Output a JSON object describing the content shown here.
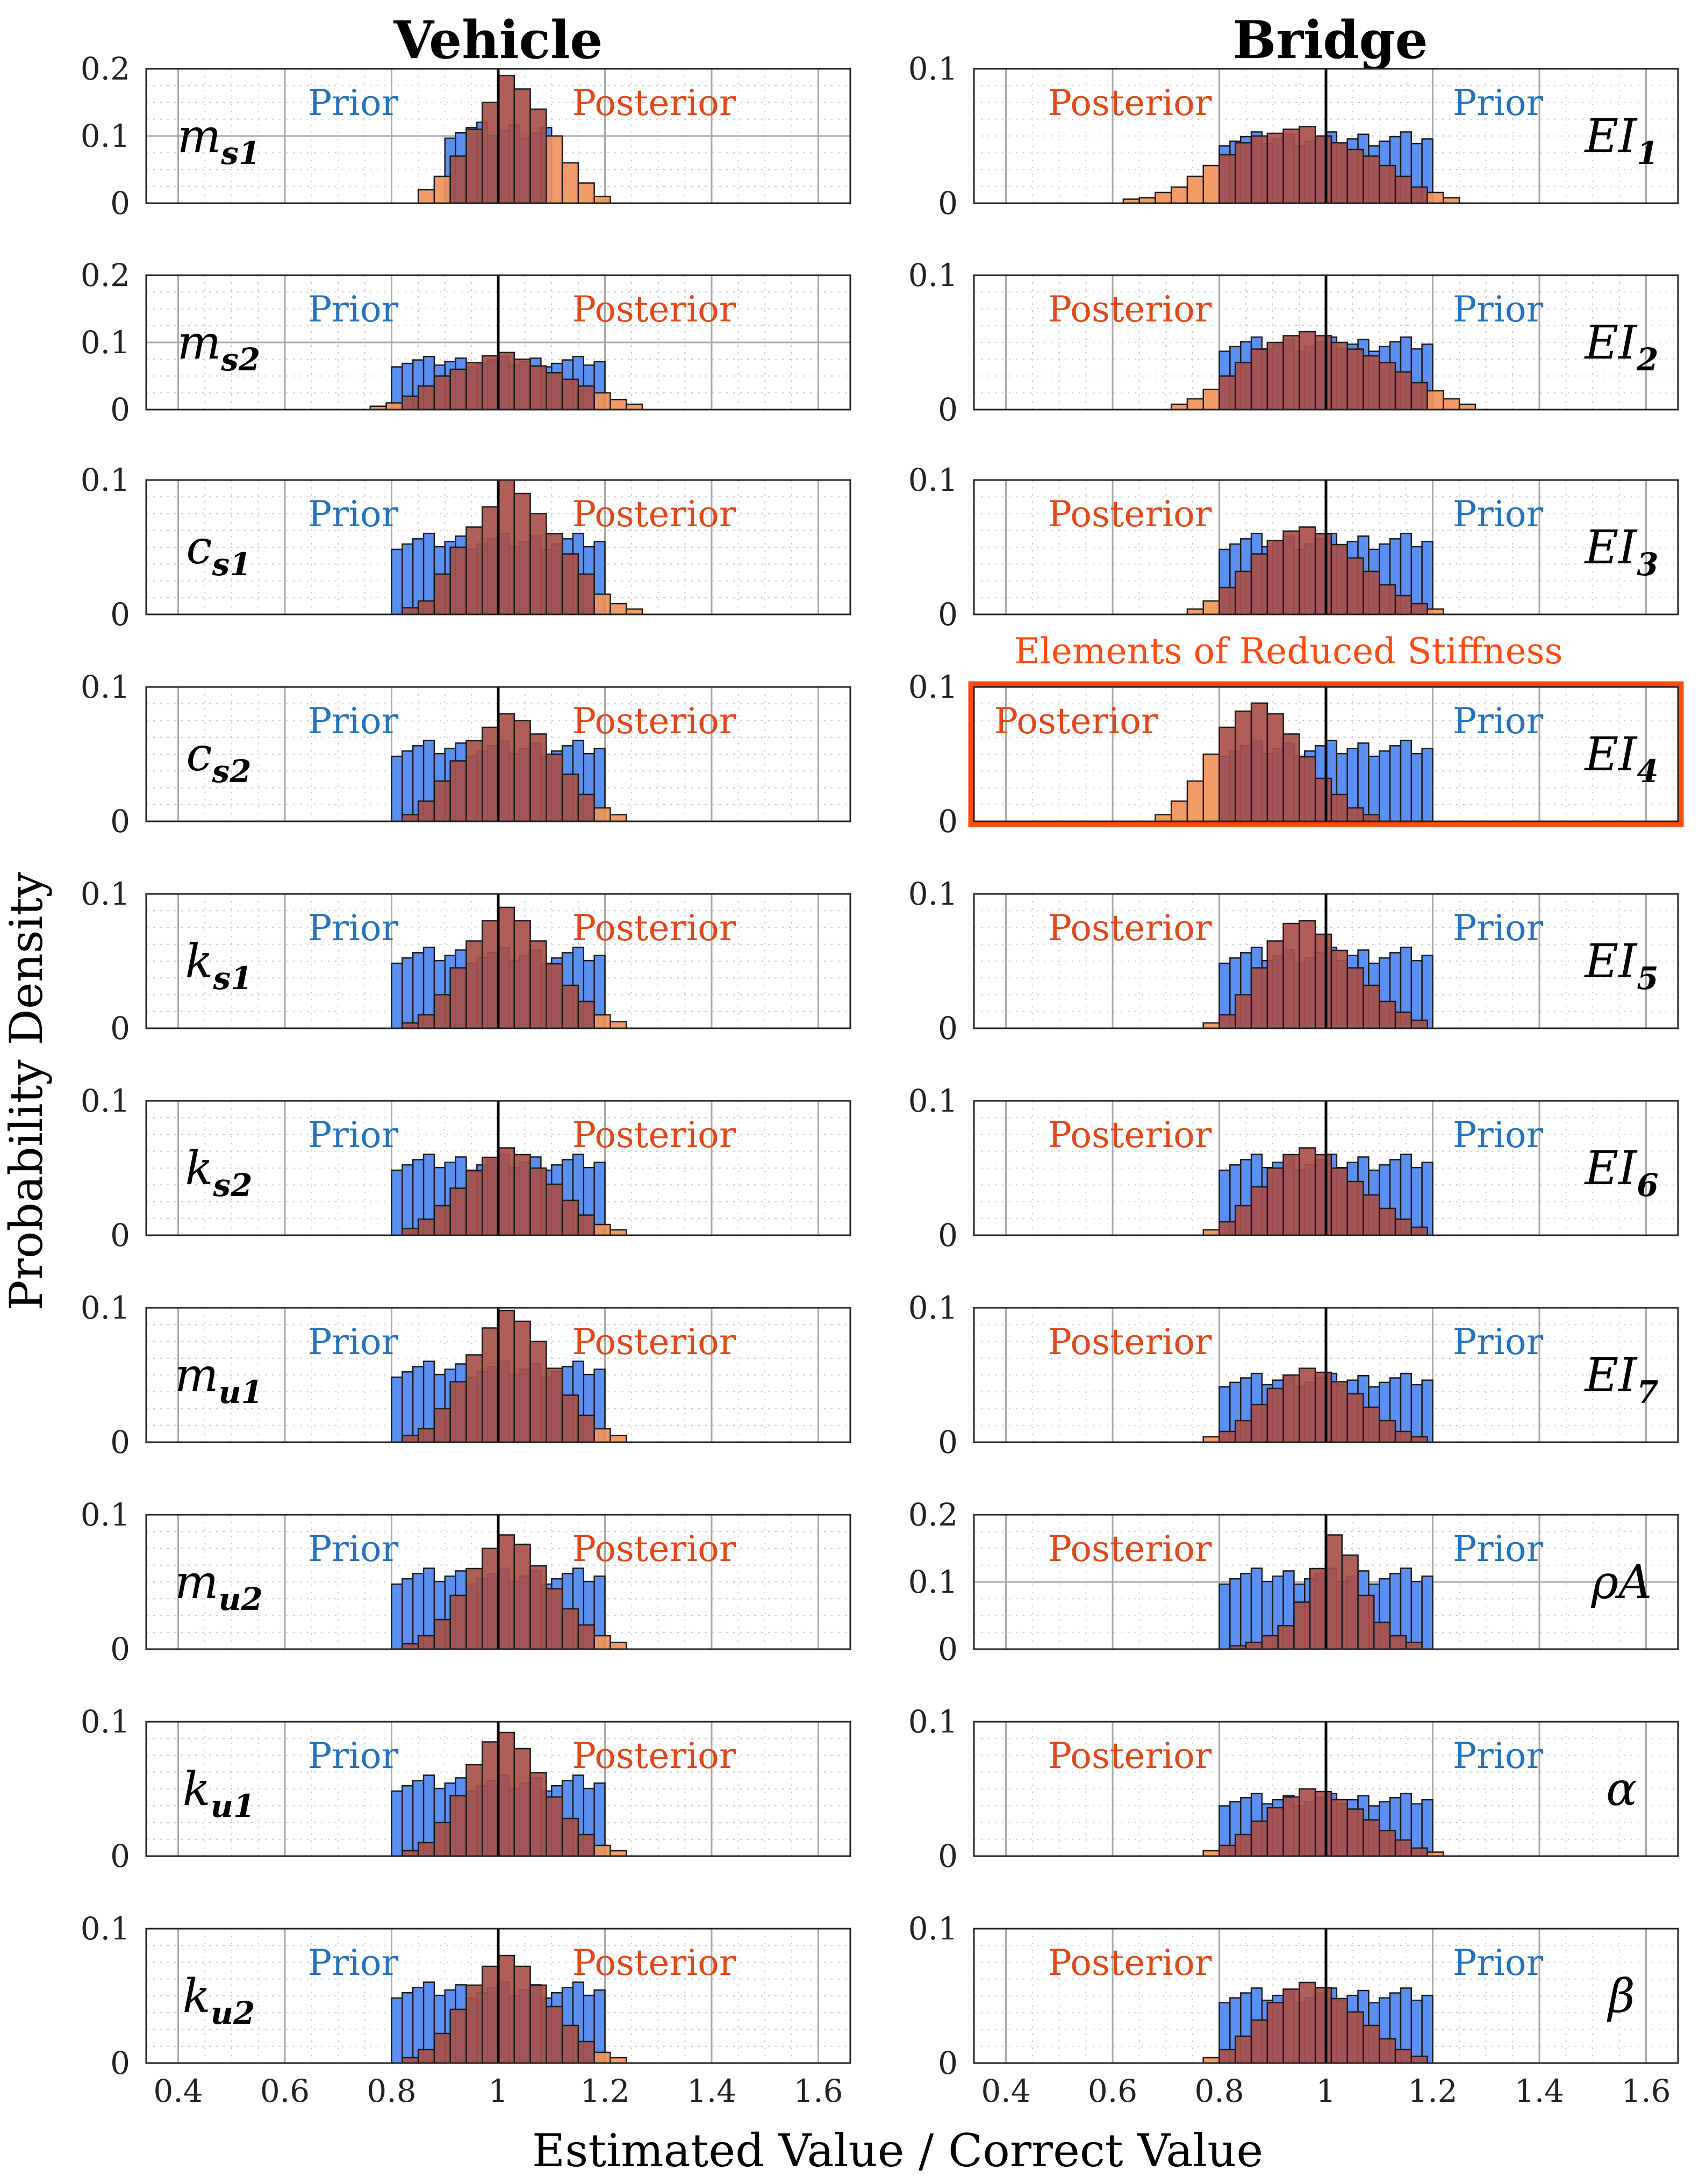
{
  "column_titles": {
    "vehicle": "Vehicle",
    "bridge": "Bridge"
  },
  "xlabel": "Estimated Value / Correct Value",
  "ylabel": "Probability Density",
  "labels": {
    "prior": "Prior",
    "posterior": "Posterior"
  },
  "highlight": {
    "label": "Elements of Reduced Stiffness",
    "panel": "EI4"
  },
  "colors": {
    "prior": "#5b8ff0",
    "posterior": "#f0925a",
    "overlap": "#a8504a",
    "prior_text": "#2472bd",
    "posterior_text": "#e0481a",
    "highlight": "#ff4a12"
  },
  "x_ticks": [
    "0.4",
    "0.6",
    "0.8",
    "1",
    "1.2",
    "1.4",
    "1.6"
  ],
  "xlim": [
    0.34,
    1.66
  ],
  "chart_data": [
    {
      "type": "bar",
      "id": "ms1",
      "column": "Vehicle",
      "param": "m",
      "sub": "s1",
      "ylim": [
        0,
        0.2
      ],
      "yticks": [
        "0",
        "0.1",
        "0.2"
      ],
      "grid": true,
      "prior_range": [
        0.9,
        1.1
      ],
      "posterior_peak": 0.19,
      "posterior_values": [
        0.02,
        0.04,
        0.07,
        0.11,
        0.15,
        0.19,
        0.17,
        0.14,
        0.1,
        0.06,
        0.03,
        0.01
      ]
    },
    {
      "type": "bar",
      "id": "EI1",
      "column": "Bridge",
      "param": "EI",
      "sub": "1",
      "ylim": [
        0,
        0.1
      ],
      "yticks": [
        "0",
        "0.1"
      ],
      "grid": true,
      "prior_range": [
        0.8,
        1.2
      ],
      "posterior_peak": 0.057,
      "posterior_values": [
        0.003,
        0.004,
        0.008,
        0.012,
        0.02,
        0.028,
        0.036,
        0.045,
        0.05,
        0.052,
        0.055,
        0.057,
        0.05,
        0.045,
        0.04,
        0.035,
        0.028,
        0.02,
        0.012,
        0.008,
        0.004
      ]
    },
    {
      "type": "bar",
      "id": "ms2",
      "column": "Vehicle",
      "param": "m",
      "sub": "s2",
      "ylim": [
        0,
        0.2
      ],
      "yticks": [
        "0",
        "0.1",
        "0.2"
      ],
      "grid": true,
      "prior_range": [
        0.8,
        1.2
      ],
      "posterior_peak": 0.085,
      "posterior_values": [
        0.005,
        0.01,
        0.02,
        0.035,
        0.05,
        0.06,
        0.07,
        0.08,
        0.085,
        0.075,
        0.065,
        0.055,
        0.045,
        0.035,
        0.025,
        0.015,
        0.008
      ]
    },
    {
      "type": "bar",
      "id": "EI2",
      "column": "Bridge",
      "param": "EI",
      "sub": "2",
      "ylim": [
        0,
        0.1
      ],
      "yticks": [
        "0",
        "0.1"
      ],
      "grid": true,
      "prior_range": [
        0.8,
        1.2
      ],
      "posterior_peak": 0.058,
      "posterior_values": [
        0.004,
        0.008,
        0.015,
        0.025,
        0.035,
        0.045,
        0.05,
        0.055,
        0.058,
        0.055,
        0.05,
        0.045,
        0.04,
        0.035,
        0.028,
        0.02,
        0.014,
        0.008,
        0.004
      ]
    },
    {
      "type": "bar",
      "id": "cs1",
      "column": "Vehicle",
      "param": "c",
      "sub": "s1",
      "ylim": [
        0,
        0.1
      ],
      "yticks": [
        "0",
        "0.1"
      ],
      "grid": true,
      "prior_range": [
        0.8,
        1.2
      ],
      "posterior_peak": 0.1,
      "posterior_values": [
        0.005,
        0.01,
        0.03,
        0.05,
        0.065,
        0.08,
        0.1,
        0.09,
        0.075,
        0.06,
        0.045,
        0.03,
        0.015,
        0.008,
        0.004
      ]
    },
    {
      "type": "bar",
      "id": "EI3",
      "column": "Bridge",
      "param": "EI",
      "sub": "3",
      "ylim": [
        0,
        0.1
      ],
      "yticks": [
        "0",
        "0.1"
      ],
      "grid": true,
      "prior_range": [
        0.8,
        1.2
      ],
      "posterior_peak": 0.065,
      "posterior_values": [
        0.004,
        0.01,
        0.02,
        0.032,
        0.045,
        0.055,
        0.062,
        0.065,
        0.06,
        0.052,
        0.042,
        0.032,
        0.022,
        0.014,
        0.008,
        0.004
      ]
    },
    {
      "type": "bar",
      "id": "cs2",
      "column": "Vehicle",
      "param": "c",
      "sub": "s2",
      "ylim": [
        0,
        0.1
      ],
      "yticks": [
        "0",
        "0.1"
      ],
      "grid": true,
      "prior_range": [
        0.8,
        1.2
      ],
      "posterior_peak": 0.08,
      "posterior_values": [
        0.005,
        0.015,
        0.03,
        0.045,
        0.06,
        0.07,
        0.08,
        0.075,
        0.065,
        0.05,
        0.035,
        0.02,
        0.01,
        0.005
      ]
    },
    {
      "type": "bar",
      "id": "EI4",
      "column": "Bridge",
      "param": "EI",
      "sub": "4",
      "ylim": [
        0,
        0.1
      ],
      "yticks": [
        "0",
        "0.1"
      ],
      "grid": true,
      "prior_range": [
        0.8,
        1.2
      ],
      "posterior_peak": 0.088,
      "posterior_values": [
        0.005,
        0.015,
        0.03,
        0.05,
        0.07,
        0.082,
        0.088,
        0.08,
        0.065,
        0.048,
        0.032,
        0.02,
        0.01,
        0.005
      ]
    },
    {
      "type": "bar",
      "id": "ks1",
      "column": "Vehicle",
      "param": "k",
      "sub": "s1",
      "ylim": [
        0,
        0.1
      ],
      "yticks": [
        "0",
        "0.1"
      ],
      "grid": true,
      "prior_range": [
        0.8,
        1.2
      ],
      "posterior_peak": 0.09,
      "posterior_values": [
        0.004,
        0.01,
        0.025,
        0.045,
        0.065,
        0.08,
        0.09,
        0.08,
        0.065,
        0.048,
        0.032,
        0.02,
        0.01,
        0.005
      ]
    },
    {
      "type": "bar",
      "id": "EI5",
      "column": "Bridge",
      "param": "EI",
      "sub": "5",
      "ylim": [
        0,
        0.1
      ],
      "yticks": [
        "0",
        "0.1"
      ],
      "grid": true,
      "prior_range": [
        0.8,
        1.2
      ],
      "posterior_peak": 0.08,
      "posterior_values": [
        0.004,
        0.01,
        0.025,
        0.045,
        0.065,
        0.078,
        0.08,
        0.07,
        0.058,
        0.045,
        0.032,
        0.02,
        0.012,
        0.006
      ]
    },
    {
      "type": "bar",
      "id": "ks2",
      "column": "Vehicle",
      "param": "k",
      "sub": "s2",
      "ylim": [
        0,
        0.1
      ],
      "yticks": [
        "0",
        "0.1"
      ],
      "grid": true,
      "prior_range": [
        0.8,
        1.2
      ],
      "posterior_peak": 0.065,
      "posterior_values": [
        0.005,
        0.012,
        0.022,
        0.035,
        0.048,
        0.058,
        0.065,
        0.06,
        0.05,
        0.038,
        0.026,
        0.015,
        0.008,
        0.004
      ]
    },
    {
      "type": "bar",
      "id": "EI6",
      "column": "Bridge",
      "param": "EI",
      "sub": "6",
      "ylim": [
        0,
        0.1
      ],
      "yticks": [
        "0",
        "0.1"
      ],
      "grid": true,
      "prior_range": [
        0.8,
        1.2
      ],
      "posterior_peak": 0.065,
      "posterior_values": [
        0.004,
        0.01,
        0.022,
        0.036,
        0.05,
        0.06,
        0.065,
        0.06,
        0.05,
        0.04,
        0.03,
        0.02,
        0.012,
        0.006
      ]
    },
    {
      "type": "bar",
      "id": "mu1",
      "column": "Vehicle",
      "param": "m",
      "sub": "u1",
      "ylim": [
        0,
        0.1
      ],
      "yticks": [
        "0",
        "0.1"
      ],
      "grid": true,
      "prior_range": [
        0.8,
        1.2
      ],
      "posterior_peak": 0.098,
      "posterior_values": [
        0.005,
        0.01,
        0.025,
        0.045,
        0.065,
        0.085,
        0.098,
        0.09,
        0.075,
        0.055,
        0.035,
        0.02,
        0.01,
        0.005
      ]
    },
    {
      "type": "bar",
      "id": "EI7",
      "column": "Bridge",
      "param": "EI",
      "sub": "7",
      "ylim": [
        0,
        0.1
      ],
      "yticks": [
        "0",
        "0.1"
      ],
      "grid": true,
      "prior_range": [
        0.8,
        1.2
      ],
      "posterior_peak": 0.055,
      "posterior_values": [
        0.004,
        0.008,
        0.016,
        0.028,
        0.04,
        0.05,
        0.055,
        0.052,
        0.045,
        0.036,
        0.026,
        0.016,
        0.008,
        0.004
      ]
    },
    {
      "type": "bar",
      "id": "mu2",
      "column": "Vehicle",
      "param": "m",
      "sub": "u2",
      "ylim": [
        0,
        0.1
      ],
      "yticks": [
        "0",
        "0.1"
      ],
      "grid": true,
      "prior_range": [
        0.8,
        1.2
      ],
      "posterior_peak": 0.085,
      "posterior_values": [
        0.004,
        0.01,
        0.022,
        0.04,
        0.06,
        0.075,
        0.085,
        0.078,
        0.062,
        0.045,
        0.03,
        0.018,
        0.01,
        0.005
      ]
    },
    {
      "type": "bar",
      "id": "rhoA",
      "column": "Bridge",
      "param": "ρA",
      "sub": "",
      "ylim": [
        0,
        0.2
      ],
      "yticks": [
        "0",
        "0.1",
        "0.2"
      ],
      "grid": true,
      "prior_range": [
        0.8,
        1.2
      ],
      "posterior_peak": 0.17,
      "posterior_values": [
        0.005,
        0.01,
        0.02,
        0.035,
        0.07,
        0.12,
        0.17,
        0.14,
        0.08,
        0.04,
        0.02,
        0.01
      ]
    },
    {
      "type": "bar",
      "id": "ku1",
      "column": "Vehicle",
      "param": "k",
      "sub": "u1",
      "ylim": [
        0,
        0.1
      ],
      "yticks": [
        "0",
        "0.1"
      ],
      "grid": true,
      "prior_range": [
        0.8,
        1.2
      ],
      "posterior_peak": 0.092,
      "posterior_values": [
        0.004,
        0.01,
        0.025,
        0.045,
        0.068,
        0.085,
        0.092,
        0.08,
        0.062,
        0.044,
        0.028,
        0.016,
        0.008,
        0.004
      ]
    },
    {
      "type": "bar",
      "id": "alpha",
      "column": "Bridge",
      "param": "α",
      "sub": "",
      "ylim": [
        0,
        0.1
      ],
      "yticks": [
        "0",
        "0.1"
      ],
      "grid": true,
      "prior_range": [
        0.8,
        1.2
      ],
      "posterior_peak": 0.05,
      "posterior_values": [
        0.004,
        0.008,
        0.016,
        0.026,
        0.036,
        0.044,
        0.05,
        0.048,
        0.042,
        0.035,
        0.027,
        0.019,
        0.012,
        0.006,
        0.003
      ]
    },
    {
      "type": "bar",
      "id": "ku2",
      "column": "Vehicle",
      "param": "k",
      "sub": "u2",
      "ylim": [
        0,
        0.1
      ],
      "yticks": [
        "0",
        "0.1"
      ],
      "grid": true,
      "prior_range": [
        0.8,
        1.2
      ],
      "posterior_peak": 0.08,
      "posterior_values": [
        0.004,
        0.01,
        0.022,
        0.04,
        0.058,
        0.072,
        0.08,
        0.072,
        0.058,
        0.042,
        0.028,
        0.016,
        0.008,
        0.004
      ]
    },
    {
      "type": "bar",
      "id": "beta",
      "column": "Bridge",
      "param": "β",
      "sub": "",
      "ylim": [
        0,
        0.1
      ],
      "yticks": [
        "0",
        "0.1"
      ],
      "grid": true,
      "prior_range": [
        0.8,
        1.2
      ],
      "posterior_peak": 0.06,
      "posterior_values": [
        0.004,
        0.01,
        0.02,
        0.032,
        0.045,
        0.055,
        0.06,
        0.056,
        0.048,
        0.038,
        0.028,
        0.018,
        0.01,
        0.005
      ]
    }
  ]
}
